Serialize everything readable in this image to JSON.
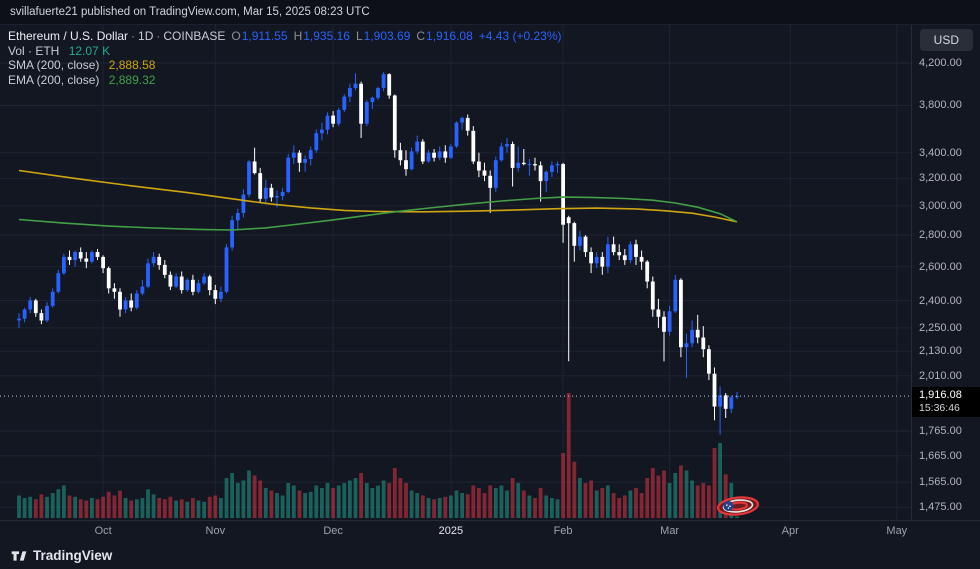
{
  "meta": {
    "attribution": "svillafuerte21 published on TradingView.com, Mar 15, 2025 08:23 UTC"
  },
  "header": {
    "symbol": "Ethereum / U.S. Dollar",
    "dot": "·",
    "interval": "1D",
    "exchange": "COINBASE",
    "o_label": "O",
    "o": "1,911.55",
    "h_label": "H",
    "h": "1,935.16",
    "l_label": "L",
    "l": "1,903.69",
    "c_label": "C",
    "c": "1,916.08",
    "change": "+4.43 (+0.23%)",
    "vol_label": "Vol · ETH",
    "vol_value": "12.07 K",
    "sma_label": "SMA (200, close)",
    "sma_value": "2,888.58",
    "ema_label": "EMA (200, close)",
    "ema_value": "2,889.32"
  },
  "currency_button": "USD",
  "footer": {
    "logo_text": "TradingView"
  },
  "price_axis": {
    "ticks": [
      {
        "label": "4,200.00",
        "p": 4200
      },
      {
        "label": "3,800.00",
        "p": 3800
      },
      {
        "label": "3,400.00",
        "p": 3400
      },
      {
        "label": "3,200.00",
        "p": 3200
      },
      {
        "label": "3,000.00",
        "p": 3000
      },
      {
        "label": "2,800.00",
        "p": 2800
      },
      {
        "label": "2,600.00",
        "p": 2600
      },
      {
        "label": "2,400.00",
        "p": 2400
      },
      {
        "label": "2,250.00",
        "p": 2250
      },
      {
        "label": "2,130.00",
        "p": 2130
      },
      {
        "label": "2,010.00",
        "p": 2010
      },
      {
        "label": "1,765.00",
        "p": 1765
      },
      {
        "label": "1,665.00",
        "p": 1665
      },
      {
        "label": "1,565.00",
        "p": 1565
      },
      {
        "label": "1,475.00",
        "p": 1475
      }
    ],
    "current": {
      "label": "1,916.08",
      "p": 1916.08,
      "countdown": "15:36:46"
    }
  },
  "time_axis": {
    "ticks": [
      {
        "label": "Oct",
        "i": 15
      },
      {
        "label": "Nov",
        "i": 35
      },
      {
        "label": "Dec",
        "i": 56
      },
      {
        "label": "2025",
        "i": 77,
        "major": true
      },
      {
        "label": "Feb",
        "i": 97
      },
      {
        "label": "Mar",
        "i": 116
      },
      {
        "label": "Apr",
        "i": 137.5
      },
      {
        "label": "May",
        "i": 156.5
      }
    ]
  },
  "colors": {
    "bg": "#131722",
    "grid": "#1e2433",
    "up": "#2962ff",
    "down": "#ffffff",
    "vol_up": "rgba(34,171,148,0.5)",
    "vol_down": "rgba(242,54,69,0.5)",
    "sma": "#d0a512",
    "ema": "#43a047",
    "teal": "#22ab94",
    "blue": "#2962ff",
    "axis_border": "#262b38",
    "label_bg": "#000000"
  },
  "chart_data": {
    "type": "candlestick",
    "title": "Ethereum / U.S. Dollar",
    "exchange": "COINBASE",
    "interval": "1D",
    "scale": "log",
    "ylim": [
      1438,
      4593
    ],
    "x_axis_labels": [
      "Oct",
      "Nov",
      "Dec",
      "2025",
      "Feb",
      "Mar",
      "Apr",
      "May"
    ],
    "last": {
      "o": 1911.55,
      "h": 1935.16,
      "l": 1903.69,
      "c": 1916.08,
      "change": 4.43,
      "change_pct": 0.23
    },
    "indicators": [
      {
        "name": "SMA (200, close)",
        "value": 2888.58
      },
      {
        "name": "EMA (200, close)",
        "value": 2889.32
      }
    ],
    "volume_display": "12.07 K",
    "volume_max": 1000,
    "candles": [
      [
        2290,
        2330,
        2250,
        2300,
        180
      ],
      [
        2300,
        2360,
        2280,
        2350,
        160
      ],
      [
        2350,
        2420,
        2330,
        2400,
        170
      ],
      [
        2400,
        2410,
        2310,
        2330,
        150
      ],
      [
        2330,
        2350,
        2270,
        2290,
        190
      ],
      [
        2290,
        2390,
        2280,
        2370,
        170
      ],
      [
        2370,
        2470,
        2360,
        2450,
        200
      ],
      [
        2450,
        2580,
        2440,
        2560,
        230
      ],
      [
        2560,
        2680,
        2550,
        2660,
        260
      ],
      [
        2660,
        2700,
        2610,
        2640,
        180
      ],
      [
        2640,
        2700,
        2600,
        2690,
        170
      ],
      [
        2690,
        2720,
        2630,
        2650,
        150
      ],
      [
        2650,
        2690,
        2590,
        2630,
        140
      ],
      [
        2630,
        2700,
        2620,
        2690,
        160
      ],
      [
        2690,
        2710,
        2640,
        2660,
        150
      ],
      [
        2660,
        2670,
        2560,
        2590,
        170
      ],
      [
        2590,
        2600,
        2440,
        2470,
        210
      ],
      [
        2470,
        2500,
        2410,
        2450,
        180
      ],
      [
        2450,
        2470,
        2310,
        2350,
        220
      ],
      [
        2350,
        2420,
        2330,
        2400,
        160
      ],
      [
        2400,
        2440,
        2340,
        2360,
        140
      ],
      [
        2360,
        2460,
        2350,
        2440,
        150
      ],
      [
        2440,
        2520,
        2430,
        2480,
        160
      ],
      [
        2480,
        2650,
        2470,
        2620,
        230
      ],
      [
        2620,
        2690,
        2600,
        2660,
        190
      ],
      [
        2660,
        2680,
        2580,
        2610,
        160
      ],
      [
        2610,
        2640,
        2530,
        2550,
        150
      ],
      [
        2550,
        2570,
        2460,
        2480,
        170
      ],
      [
        2480,
        2560,
        2470,
        2540,
        140
      ],
      [
        2540,
        2570,
        2440,
        2460,
        150
      ],
      [
        2460,
        2530,
        2450,
        2520,
        130
      ],
      [
        2520,
        2550,
        2430,
        2450,
        160
      ],
      [
        2450,
        2520,
        2440,
        2500,
        140
      ],
      [
        2500,
        2560,
        2490,
        2540,
        130
      ],
      [
        2540,
        2550,
        2430,
        2460,
        170
      ],
      [
        2460,
        2490,
        2380,
        2410,
        180
      ],
      [
        2410,
        2480,
        2390,
        2450,
        160
      ],
      [
        2450,
        2740,
        2440,
        2720,
        320
      ],
      [
        2720,
        2930,
        2700,
        2900,
        360
      ],
      [
        2900,
        2980,
        2830,
        2950,
        280
      ],
      [
        2950,
        3120,
        2920,
        3080,
        300
      ],
      [
        3080,
        3340,
        3060,
        3330,
        380
      ],
      [
        3330,
        3440,
        3230,
        3240,
        340
      ],
      [
        3240,
        3280,
        3020,
        3050,
        300
      ],
      [
        3050,
        3190,
        3010,
        3130,
        240
      ],
      [
        3130,
        3160,
        3030,
        3060,
        220
      ],
      [
        3060,
        3110,
        2990,
        3070,
        200
      ],
      [
        3070,
        3130,
        3040,
        3100,
        180
      ],
      [
        3100,
        3390,
        3090,
        3360,
        280
      ],
      [
        3360,
        3460,
        3310,
        3400,
        260
      ],
      [
        3400,
        3420,
        3250,
        3320,
        220
      ],
      [
        3320,
        3380,
        3250,
        3350,
        200
      ],
      [
        3350,
        3450,
        3300,
        3420,
        210
      ],
      [
        3420,
        3590,
        3400,
        3560,
        260
      ],
      [
        3560,
        3650,
        3500,
        3590,
        240
      ],
      [
        3590,
        3740,
        3550,
        3710,
        280
      ],
      [
        3710,
        3750,
        3610,
        3640,
        240
      ],
      [
        3640,
        3780,
        3620,
        3760,
        260
      ],
      [
        3760,
        3900,
        3740,
        3880,
        280
      ],
      [
        3880,
        4000,
        3830,
        3960,
        300
      ],
      [
        3960,
        4100,
        3940,
        4000,
        320
      ],
      [
        4000,
        4020,
        3520,
        3640,
        360
      ],
      [
        3640,
        3850,
        3620,
        3830,
        280
      ],
      [
        3830,
        3880,
        3770,
        3870,
        240
      ],
      [
        3870,
        3970,
        3850,
        3960,
        260
      ],
      [
        3960,
        4110,
        3930,
        4090,
        300
      ],
      [
        4090,
        4100,
        3860,
        3890,
        280
      ],
      [
        3890,
        3900,
        3360,
        3420,
        400
      ],
      [
        3420,
        3480,
        3300,
        3340,
        320
      ],
      [
        3340,
        3420,
        3220,
        3270,
        280
      ],
      [
        3270,
        3440,
        3260,
        3410,
        220
      ],
      [
        3410,
        3540,
        3390,
        3490,
        200
      ],
      [
        3490,
        3510,
        3310,
        3330,
        180
      ],
      [
        3330,
        3420,
        3320,
        3400,
        160
      ],
      [
        3400,
        3430,
        3330,
        3360,
        150
      ],
      [
        3360,
        3450,
        3340,
        3410,
        160
      ],
      [
        3410,
        3460,
        3320,
        3360,
        170
      ],
      [
        3360,
        3470,
        3350,
        3450,
        180
      ],
      [
        3450,
        3660,
        3440,
        3650,
        220
      ],
      [
        3650,
        3700,
        3590,
        3690,
        200
      ],
      [
        3690,
        3720,
        3540,
        3580,
        190
      ],
      [
        3580,
        3620,
        3310,
        3330,
        260
      ],
      [
        3330,
        3400,
        3210,
        3260,
        240
      ],
      [
        3260,
        3320,
        3180,
        3220,
        200
      ],
      [
        3220,
        3260,
        2950,
        3130,
        260
      ],
      [
        3130,
        3370,
        3100,
        3340,
        240
      ],
      [
        3340,
        3480,
        3330,
        3450,
        260
      ],
      [
        3450,
        3520,
        3400,
        3470,
        220
      ],
      [
        3470,
        3490,
        3140,
        3280,
        320
      ],
      [
        3280,
        3450,
        3250,
        3320,
        280
      ],
      [
        3320,
        3430,
        3300,
        3310,
        220
      ],
      [
        3310,
        3350,
        3220,
        3310,
        180
      ],
      [
        3310,
        3360,
        3260,
        3300,
        160
      ],
      [
        3300,
        3330,
        3030,
        3180,
        240
      ],
      [
        3180,
        3260,
        3100,
        3250,
        180
      ],
      [
        3250,
        3330,
        3210,
        3300,
        160
      ],
      [
        3300,
        3330,
        3240,
        3310,
        150
      ],
      [
        3310,
        3320,
        2750,
        2870,
        520
      ],
      [
        2920,
        2930,
        2080,
        2880,
        1000
      ],
      [
        2880,
        2890,
        2630,
        2730,
        450
      ],
      [
        2730,
        2830,
        2700,
        2790,
        320
      ],
      [
        2790,
        2800,
        2660,
        2690,
        280
      ],
      [
        2690,
        2720,
        2560,
        2620,
        300
      ],
      [
        2620,
        2690,
        2590,
        2660,
        220
      ],
      [
        2660,
        2690,
        2550,
        2600,
        240
      ],
      [
        2600,
        2790,
        2560,
        2740,
        260
      ],
      [
        2740,
        2790,
        2670,
        2690,
        200
      ],
      [
        2690,
        2740,
        2640,
        2670,
        160
      ],
      [
        2670,
        2710,
        2610,
        2640,
        180
      ],
      [
        2640,
        2760,
        2620,
        2740,
        220
      ],
      [
        2740,
        2770,
        2610,
        2660,
        240
      ],
      [
        2660,
        2700,
        2580,
        2630,
        200
      ],
      [
        2630,
        2640,
        2470,
        2510,
        320
      ],
      [
        2510,
        2540,
        2310,
        2350,
        400
      ],
      [
        2350,
        2410,
        2250,
        2310,
        340
      ],
      [
        2310,
        2340,
        2080,
        2230,
        380
      ],
      [
        2230,
        2370,
        2210,
        2340,
        280
      ],
      [
        2340,
        2550,
        2330,
        2520,
        360
      ],
      [
        2520,
        2530,
        2100,
        2150,
        420
      ],
      [
        2150,
        2220,
        2000,
        2170,
        380
      ],
      [
        2170,
        2290,
        2150,
        2240,
        300
      ],
      [
        2240,
        2320,
        2170,
        2200,
        260
      ],
      [
        2200,
        2260,
        2100,
        2140,
        280
      ],
      [
        2140,
        2160,
        1990,
        2020,
        260
      ],
      [
        2020,
        2050,
        1810,
        1870,
        560
      ],
      [
        1870,
        1960,
        1750,
        1920,
        600
      ],
      [
        1920,
        1930,
        1820,
        1860,
        350
      ],
      [
        1860,
        1920,
        1840,
        1911,
        280
      ],
      [
        1911.55,
        1935.16,
        1903.69,
        1916.08,
        12
      ]
    ],
    "overlays": [
      {
        "id": "sma-line",
        "name": "SMA 200",
        "color": "#d0a512",
        "points": [
          [
            0,
            3260
          ],
          [
            10,
            3200
          ],
          [
            20,
            3145
          ],
          [
            30,
            3095
          ],
          [
            38,
            3050
          ],
          [
            45,
            3012
          ],
          [
            52,
            2985
          ],
          [
            58,
            2968
          ],
          [
            64,
            2960
          ],
          [
            72,
            2958
          ],
          [
            80,
            2962
          ],
          [
            88,
            2970
          ],
          [
            96,
            2980
          ],
          [
            103,
            2984
          ],
          [
            110,
            2978
          ],
          [
            115,
            2966
          ],
          [
            120,
            2948
          ],
          [
            124,
            2922
          ],
          [
            128,
            2889
          ]
        ]
      },
      {
        "id": "ema-line",
        "name": "EMA 200",
        "color": "#43a047",
        "points": [
          [
            0,
            2905
          ],
          [
            8,
            2880
          ],
          [
            16,
            2860
          ],
          [
            24,
            2847
          ],
          [
            32,
            2838
          ],
          [
            38,
            2834
          ],
          [
            44,
            2848
          ],
          [
            50,
            2874
          ],
          [
            56,
            2902
          ],
          [
            62,
            2933
          ],
          [
            68,
            2962
          ],
          [
            74,
            2988
          ],
          [
            80,
            3012
          ],
          [
            86,
            3034
          ],
          [
            92,
            3052
          ],
          [
            97,
            3062
          ],
          [
            102,
            3060
          ],
          [
            108,
            3052
          ],
          [
            113,
            3040
          ],
          [
            117,
            3020
          ],
          [
            121,
            2990
          ],
          [
            125,
            2945
          ],
          [
            128,
            2889
          ]
        ]
      }
    ]
  }
}
